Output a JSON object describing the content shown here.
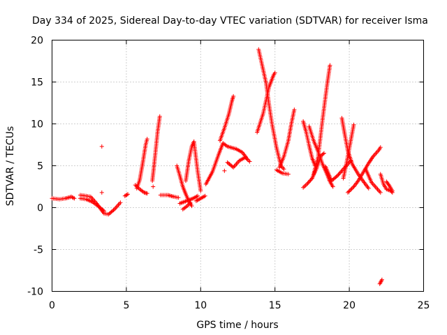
{
  "chart_data": {
    "type": "scatter",
    "title": "Day 334 of 2025, Sidereal Day-to-day VTEC variation (SDTVAR) for receiver Isma",
    "xlabel": "GPS time / hours",
    "ylabel": "SDTVAR / TECUs",
    "xlim": [
      0,
      25
    ],
    "ylim": [
      -10,
      20
    ],
    "x_ticks": [
      0,
      5,
      10,
      15,
      20,
      25
    ],
    "y_ticks": [
      -10,
      -5,
      0,
      5,
      10,
      15,
      20
    ],
    "grid": true,
    "marker": "+",
    "color": "#ff0000",
    "series": [
      {
        "name": "sdtvar",
        "segments": [
          [
            [
              0.0,
              1.1
            ],
            [
              0.5,
              1.0
            ],
            [
              0.9,
              1.1
            ],
            [
              1.3,
              1.3
            ],
            [
              1.5,
              1.1
            ]
          ],
          [
            [
              1.9,
              1.5
            ],
            [
              2.3,
              1.4
            ],
            [
              2.6,
              1.3
            ],
            [
              3.0,
              0.5
            ],
            [
              3.5,
              -0.7
            ],
            [
              3.8,
              -0.8
            ],
            [
              4.2,
              -0.2
            ],
            [
              4.6,
              0.6
            ]
          ],
          [
            [
              1.9,
              1.1
            ],
            [
              2.3,
              1.0
            ],
            [
              2.7,
              0.7
            ],
            [
              3.1,
              0.2
            ],
            [
              3.5,
              -0.4
            ]
          ],
          [
            [
              3.35,
              7.3
            ]
          ],
          [
            [
              3.35,
              1.8
            ]
          ],
          [
            [
              4.9,
              1.4
            ],
            [
              5.1,
              1.6
            ]
          ],
          [
            [
              5.7,
              2.3
            ],
            [
              5.9,
              3.3
            ],
            [
              6.1,
              5.3
            ],
            [
              6.3,
              7.5
            ],
            [
              6.4,
              8.2
            ]
          ],
          [
            [
              5.6,
              2.7
            ],
            [
              5.9,
              2.2
            ],
            [
              6.2,
              1.8
            ],
            [
              6.4,
              1.7
            ]
          ],
          [
            [
              6.75,
              3.2
            ],
            [
              6.9,
              5.6
            ],
            [
              7.1,
              9.0
            ],
            [
              7.25,
              10.9
            ]
          ],
          [
            [
              6.8,
              2.5
            ]
          ],
          [
            [
              7.3,
              1.5
            ],
            [
              7.8,
              1.5
            ],
            [
              8.2,
              1.3
            ],
            [
              8.5,
              1.2
            ]
          ],
          [
            [
              8.4,
              5.0
            ],
            [
              8.6,
              3.8
            ],
            [
              8.8,
              2.5
            ],
            [
              9.0,
              1.6
            ],
            [
              9.2,
              0.8
            ],
            [
              9.4,
              0.2
            ]
          ],
          [
            [
              8.6,
              0.5
            ],
            [
              8.9,
              0.7
            ],
            [
              9.2,
              0.9
            ],
            [
              9.5,
              1.1
            ],
            [
              9.8,
              1.4
            ]
          ],
          [
            [
              8.8,
              -0.2
            ],
            [
              9.1,
              0.2
            ],
            [
              9.3,
              0.6
            ]
          ],
          [
            [
              9.0,
              3.2
            ],
            [
              9.2,
              5.6
            ],
            [
              9.4,
              7.3
            ],
            [
              9.55,
              7.9
            ],
            [
              9.8,
              4.3
            ],
            [
              10.0,
              2.0
            ]
          ],
          [
            [
              9.7,
              0.8
            ],
            [
              10.0,
              1.1
            ],
            [
              10.3,
              1.4
            ]
          ],
          [
            [
              10.35,
              2.8
            ],
            [
              10.8,
              4.3
            ],
            [
              11.2,
              6.3
            ],
            [
              11.5,
              7.7
            ],
            [
              11.8,
              7.3
            ],
            [
              12.4,
              7.0
            ],
            [
              12.8,
              6.6
            ],
            [
              13.1,
              5.9
            ]
          ],
          [
            [
              11.3,
              8.0
            ],
            [
              11.6,
              9.5
            ],
            [
              11.9,
              11.2
            ],
            [
              12.1,
              12.7
            ],
            [
              12.2,
              13.3
            ]
          ],
          [
            [
              11.8,
              5.4
            ],
            [
              12.2,
              4.8
            ],
            [
              12.6,
              5.6
            ],
            [
              13.0,
              6.0
            ],
            [
              13.3,
              5.5
            ]
          ],
          [
            [
              11.6,
              4.4
            ]
          ],
          [
            [
              13.8,
              9.0
            ],
            [
              14.2,
              11.2
            ],
            [
              14.6,
              14.4
            ],
            [
              14.9,
              15.8
            ],
            [
              15.0,
              16.1
            ]
          ],
          [
            [
              13.9,
              18.9
            ],
            [
              14.1,
              17.3
            ],
            [
              14.4,
              14.9
            ],
            [
              14.6,
              12.3
            ],
            [
              14.8,
              10.0
            ],
            [
              15.1,
              7.2
            ],
            [
              15.4,
              5.0
            ],
            [
              15.6,
              4.6
            ]
          ],
          [
            [
              15.1,
              4.5
            ],
            [
              15.5,
              4.1
            ],
            [
              15.9,
              4.0
            ]
          ],
          [
            [
              15.3,
              4.8
            ],
            [
              15.6,
              6.1
            ],
            [
              15.9,
              8.0
            ],
            [
              16.1,
              10.0
            ],
            [
              16.3,
              11.7
            ]
          ],
          [
            [
              16.9,
              10.3
            ],
            [
              17.1,
              9.0
            ],
            [
              17.3,
              7.4
            ],
            [
              17.5,
              5.9
            ],
            [
              17.7,
              5.0
            ]
          ],
          [
            [
              16.9,
              2.4
            ],
            [
              17.2,
              2.9
            ],
            [
              17.5,
              3.5
            ],
            [
              17.8,
              4.7
            ],
            [
              18.1,
              6.2
            ],
            [
              18.3,
              6.5
            ]
          ],
          [
            [
              17.3,
              9.7
            ],
            [
              17.6,
              8.0
            ],
            [
              17.9,
              6.7
            ],
            [
              18.2,
              5.2
            ],
            [
              18.5,
              4.0
            ],
            [
              18.7,
              3.1
            ],
            [
              18.9,
              2.5
            ]
          ],
          [
            [
              17.6,
              4.0
            ],
            [
              17.9,
              6.0
            ],
            [
              18.2,
              10.5
            ],
            [
              18.5,
              14.6
            ],
            [
              18.7,
              17.0
            ]
          ],
          [
            [
              18.4,
              4.9
            ],
            [
              18.8,
              3.2
            ],
            [
              19.2,
              3.8
            ],
            [
              19.5,
              4.4
            ],
            [
              19.9,
              5.2
            ],
            [
              20.1,
              5.6
            ]
          ],
          [
            [
              19.5,
              10.7
            ],
            [
              19.7,
              8.7
            ],
            [
              19.9,
              6.8
            ],
            [
              20.2,
              5.2
            ],
            [
              20.6,
              4.0
            ],
            [
              21.0,
              3.0
            ],
            [
              21.3,
              2.3
            ]
          ],
          [
            [
              19.6,
              3.5
            ],
            [
              19.8,
              5.2
            ],
            [
              20.1,
              8.0
            ],
            [
              20.3,
              9.9
            ]
          ],
          [
            [
              19.9,
              1.8
            ],
            [
              20.3,
              2.5
            ],
            [
              20.6,
              3.2
            ],
            [
              20.9,
              4.1
            ],
            [
              21.3,
              5.3
            ],
            [
              21.6,
              6.1
            ],
            [
              22.0,
              6.9
            ],
            [
              22.1,
              7.2
            ]
          ],
          [
            [
              21.1,
              4.6
            ],
            [
              21.5,
              3.0
            ],
            [
              21.9,
              2.2
            ],
            [
              22.1,
              1.8
            ]
          ],
          [
            [
              22.1,
              4.0
            ],
            [
              22.3,
              2.8
            ],
            [
              22.5,
              2.2
            ],
            [
              22.8,
              2.0
            ],
            [
              22.9,
              1.8
            ]
          ],
          [
            [
              22.5,
              3.1
            ],
            [
              22.7,
              2.6
            ],
            [
              22.9,
              2.0
            ]
          ],
          [
            [
              22.05,
              -9.1
            ],
            [
              22.2,
              -8.6
            ]
          ]
        ]
      }
    ]
  }
}
